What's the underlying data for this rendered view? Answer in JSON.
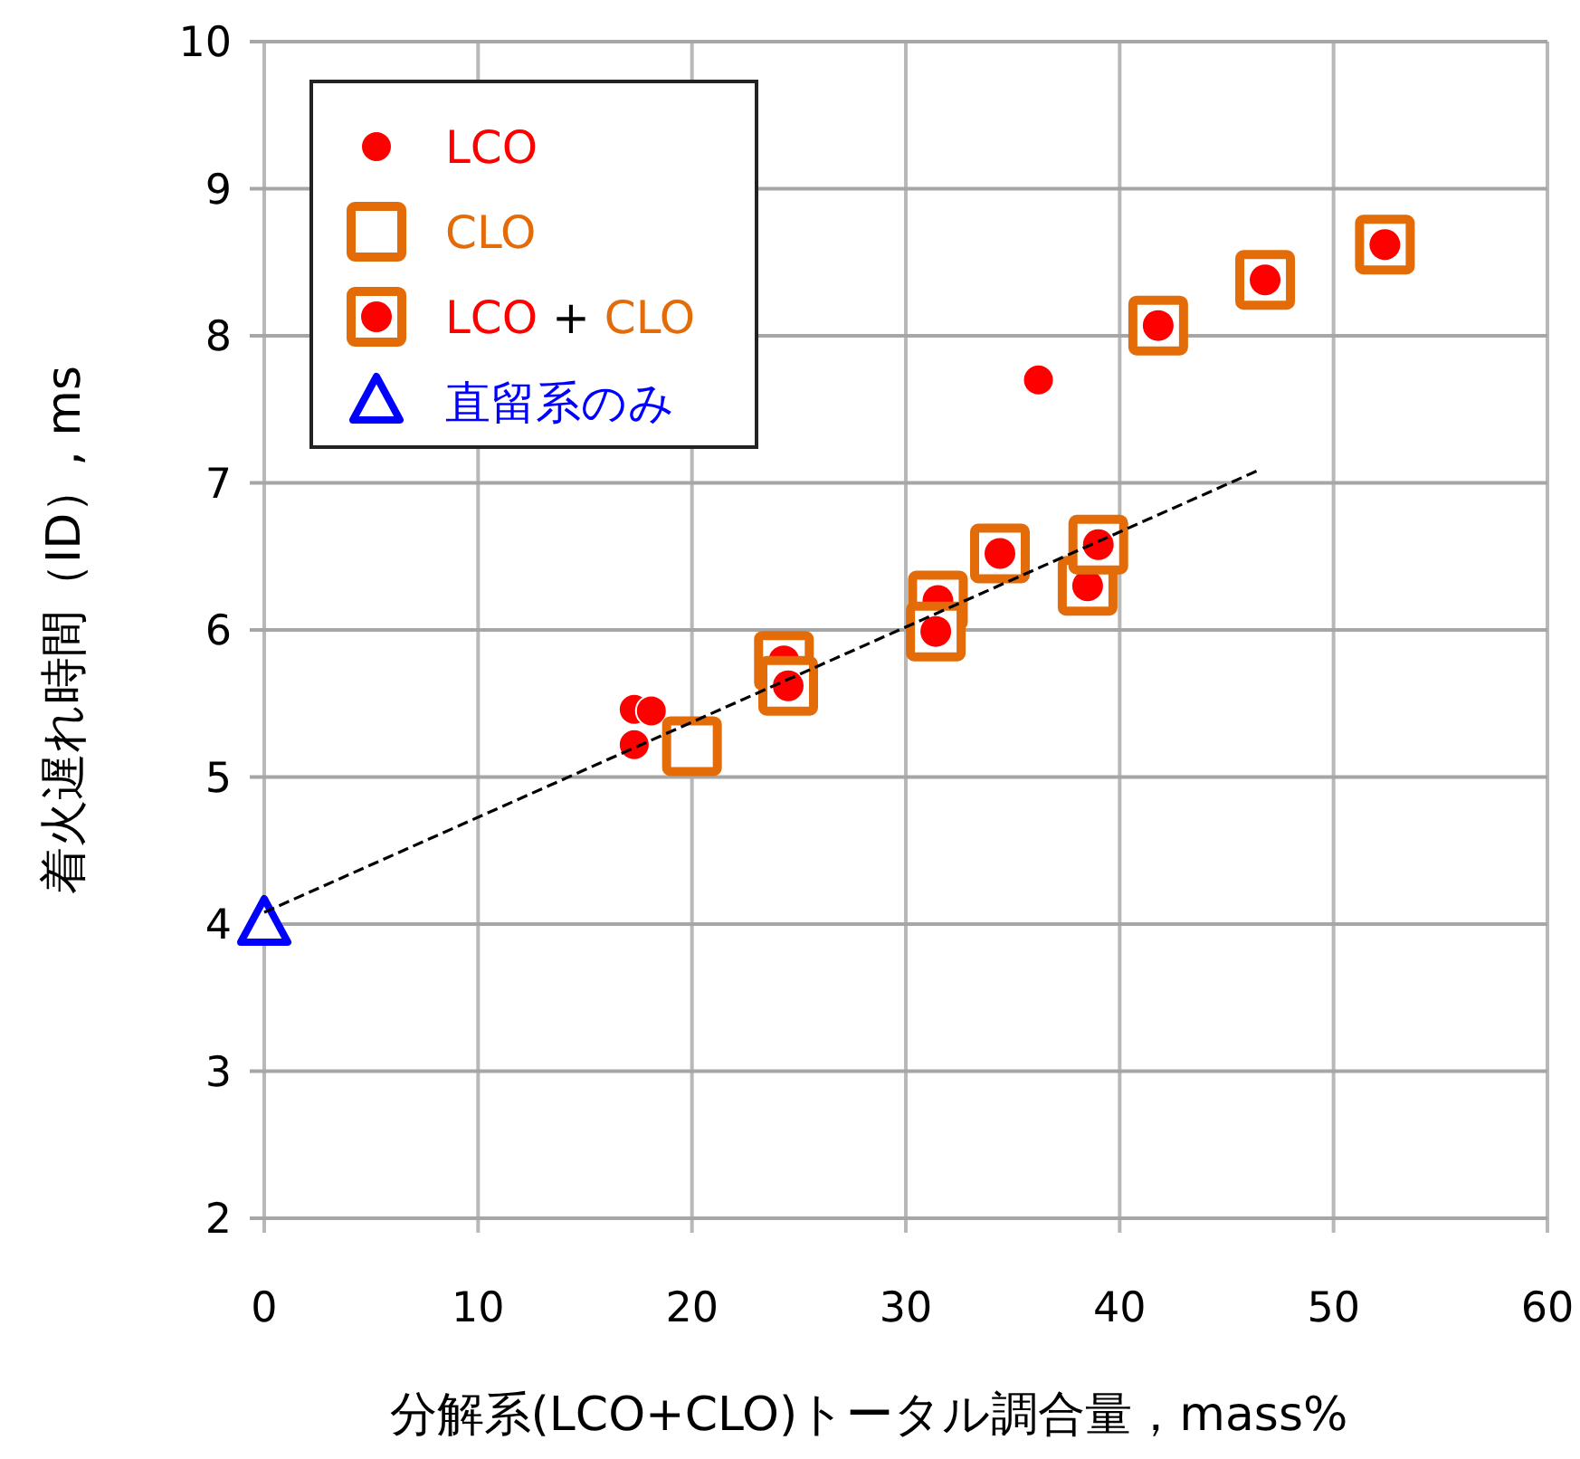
{
  "chart_data": {
    "type": "scatter",
    "xlabel": "分解系(LCO+CLO)トータル調合量，mass%",
    "ylabel": "着火遅れ時間（ID）, ms",
    "xlim": [
      0,
      60
    ],
    "xticks": [
      0,
      10,
      20,
      30,
      40,
      50,
      60
    ],
    "ylim": [
      2,
      10
    ],
    "yticks": [
      2,
      3,
      4,
      5,
      6,
      7,
      8,
      9,
      10
    ],
    "grid": true,
    "legend": "top left",
    "series": [
      {
        "name": "LCO",
        "color": "#ff0000",
        "marker": "circle",
        "x": [
          17.3,
          18.1,
          17.3,
          36.2
        ],
        "values": [
          5.46,
          5.45,
          5.22,
          7.7
        ]
      },
      {
        "name": "CLO",
        "color": "#e36c09",
        "marker": "square",
        "x": [
          20.0
        ],
        "values": [
          5.21
        ]
      },
      {
        "name": "LCO + CLO",
        "color": "#e36c09",
        "marker": "square",
        "x": [
          24.3,
          24.5,
          31.5,
          31.4,
          34.4,
          38.5,
          39.0,
          41.8,
          46.8,
          52.4
        ],
        "values": [
          5.79,
          5.62,
          6.2,
          5.99,
          6.52,
          6.3,
          6.58,
          8.07,
          8.38,
          8.62
        ]
      },
      {
        "name": "直留系のみ",
        "color": "#0000ff",
        "marker": "triangle",
        "x": [
          0
        ],
        "values": [
          4.0
        ]
      },
      {
        "type": "line",
        "color": "#000000",
        "line_style": "dashed",
        "marker": "none",
        "x": [
          0,
          46.4
        ],
        "values": [
          4.08,
          7.08
        ]
      }
    ]
  }
}
